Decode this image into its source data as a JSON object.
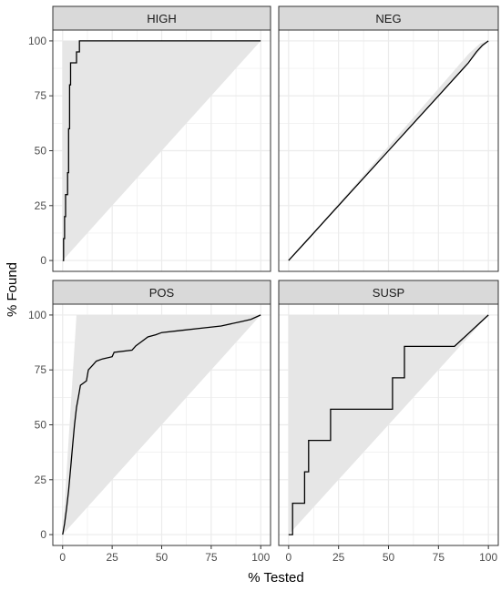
{
  "chart_data": {
    "type": "line",
    "layout": "facet-grid-2x2",
    "xlabel": "% Tested",
    "ylabel": "% Found",
    "xlim": [
      0,
      100
    ],
    "ylim": [
      0,
      100
    ],
    "x_ticks": [
      0,
      25,
      50,
      75,
      100
    ],
    "y_ticks": [
      0,
      25,
      50,
      75,
      100
    ],
    "x_tick_labels": [
      "0",
      "25",
      "50",
      "75",
      "100"
    ],
    "y_tick_labels": [
      "0",
      "25",
      "50",
      "75",
      "100"
    ],
    "grid": true,
    "legend": "none",
    "colors": {
      "panel_background": "#ffffff",
      "strip_background": "#d9d9d9",
      "gridline": "#ebebeb",
      "shaded_region": "#e6e6e6",
      "line": "#000000",
      "border": "#333333",
      "text": "#4d4d4d"
    },
    "facets": [
      {
        "label": "HIGH",
        "area_upper": [
          [
            0,
            100
          ],
          [
            3,
            100
          ],
          [
            100,
            100
          ]
        ],
        "series": [
          {
            "x": 0,
            "y": 0
          },
          {
            "x": 0.5,
            "y": 0
          },
          {
            "x": 0.5,
            "y": 10
          },
          {
            "x": 1,
            "y": 10
          },
          {
            "x": 1,
            "y": 20
          },
          {
            "x": 1.5,
            "y": 20
          },
          {
            "x": 1.5,
            "y": 30
          },
          {
            "x": 2.5,
            "y": 30
          },
          {
            "x": 2.5,
            "y": 40
          },
          {
            "x": 3,
            "y": 40
          },
          {
            "x": 3,
            "y": 60
          },
          {
            "x": 3.5,
            "y": 60
          },
          {
            "x": 3.5,
            "y": 80
          },
          {
            "x": 4,
            "y": 80
          },
          {
            "x": 4,
            "y": 90
          },
          {
            "x": 7,
            "y": 90
          },
          {
            "x": 7,
            "y": 95
          },
          {
            "x": 8.5,
            "y": 95
          },
          {
            "x": 8.5,
            "y": 100
          },
          {
            "x": 100,
            "y": 100
          }
        ]
      },
      {
        "label": "NEG",
        "area_upper": [
          [
            0,
            0
          ],
          [
            10,
            10.5
          ],
          [
            30,
            31
          ],
          [
            50,
            52
          ],
          [
            70,
            73
          ],
          [
            90,
            94
          ],
          [
            96,
            99
          ],
          [
            100,
            100
          ]
        ],
        "series": [
          {
            "x": 0,
            "y": 0
          },
          {
            "x": 10,
            "y": 10
          },
          {
            "x": 20,
            "y": 20
          },
          {
            "x": 30,
            "y": 30
          },
          {
            "x": 40,
            "y": 40
          },
          {
            "x": 50,
            "y": 50
          },
          {
            "x": 60,
            "y": 60
          },
          {
            "x": 70,
            "y": 70
          },
          {
            "x": 80,
            "y": 80
          },
          {
            "x": 90,
            "y": 90
          },
          {
            "x": 94,
            "y": 95
          },
          {
            "x": 97,
            "y": 98
          },
          {
            "x": 100,
            "y": 100
          }
        ]
      },
      {
        "label": "POS",
        "area_upper": [
          [
            0,
            0
          ],
          [
            7,
            100
          ],
          [
            100,
            100
          ]
        ],
        "series": [
          {
            "x": 0,
            "y": 0
          },
          {
            "x": 1,
            "y": 5
          },
          {
            "x": 2,
            "y": 12
          },
          {
            "x": 3,
            "y": 20
          },
          {
            "x": 4,
            "y": 30
          },
          {
            "x": 5,
            "y": 40
          },
          {
            "x": 6,
            "y": 50
          },
          {
            "x": 7,
            "y": 58
          },
          {
            "x": 8,
            "y": 63
          },
          {
            "x": 9,
            "y": 68
          },
          {
            "x": 12,
            "y": 70
          },
          {
            "x": 13,
            "y": 75
          },
          {
            "x": 15,
            "y": 77
          },
          {
            "x": 17,
            "y": 79
          },
          {
            "x": 20,
            "y": 80
          },
          {
            "x": 25,
            "y": 81
          },
          {
            "x": 26,
            "y": 83
          },
          {
            "x": 35,
            "y": 84
          },
          {
            "x": 37,
            "y": 86
          },
          {
            "x": 40,
            "y": 88
          },
          {
            "x": 43,
            "y": 90
          },
          {
            "x": 47,
            "y": 91
          },
          {
            "x": 50,
            "y": 92
          },
          {
            "x": 60,
            "y": 93
          },
          {
            "x": 70,
            "y": 94
          },
          {
            "x": 80,
            "y": 95
          },
          {
            "x": 90,
            "y": 97
          },
          {
            "x": 95,
            "y": 98
          },
          {
            "x": 100,
            "y": 100
          }
        ]
      },
      {
        "label": "SUSP",
        "area_upper": [
          [
            0,
            100
          ],
          [
            100,
            100
          ]
        ],
        "series": [
          {
            "x": 0,
            "y": 0
          },
          {
            "x": 2,
            "y": 0
          },
          {
            "x": 2,
            "y": 14.3
          },
          {
            "x": 8,
            "y": 14.3
          },
          {
            "x": 8,
            "y": 28.6
          },
          {
            "x": 10,
            "y": 28.6
          },
          {
            "x": 10,
            "y": 42.9
          },
          {
            "x": 21,
            "y": 42.9
          },
          {
            "x": 21,
            "y": 57.1
          },
          {
            "x": 52,
            "y": 57.1
          },
          {
            "x": 52,
            "y": 71.4
          },
          {
            "x": 58,
            "y": 71.4
          },
          {
            "x": 58,
            "y": 85.7
          },
          {
            "x": 83,
            "y": 85.7
          },
          {
            "x": 100,
            "y": 100
          }
        ]
      }
    ]
  }
}
